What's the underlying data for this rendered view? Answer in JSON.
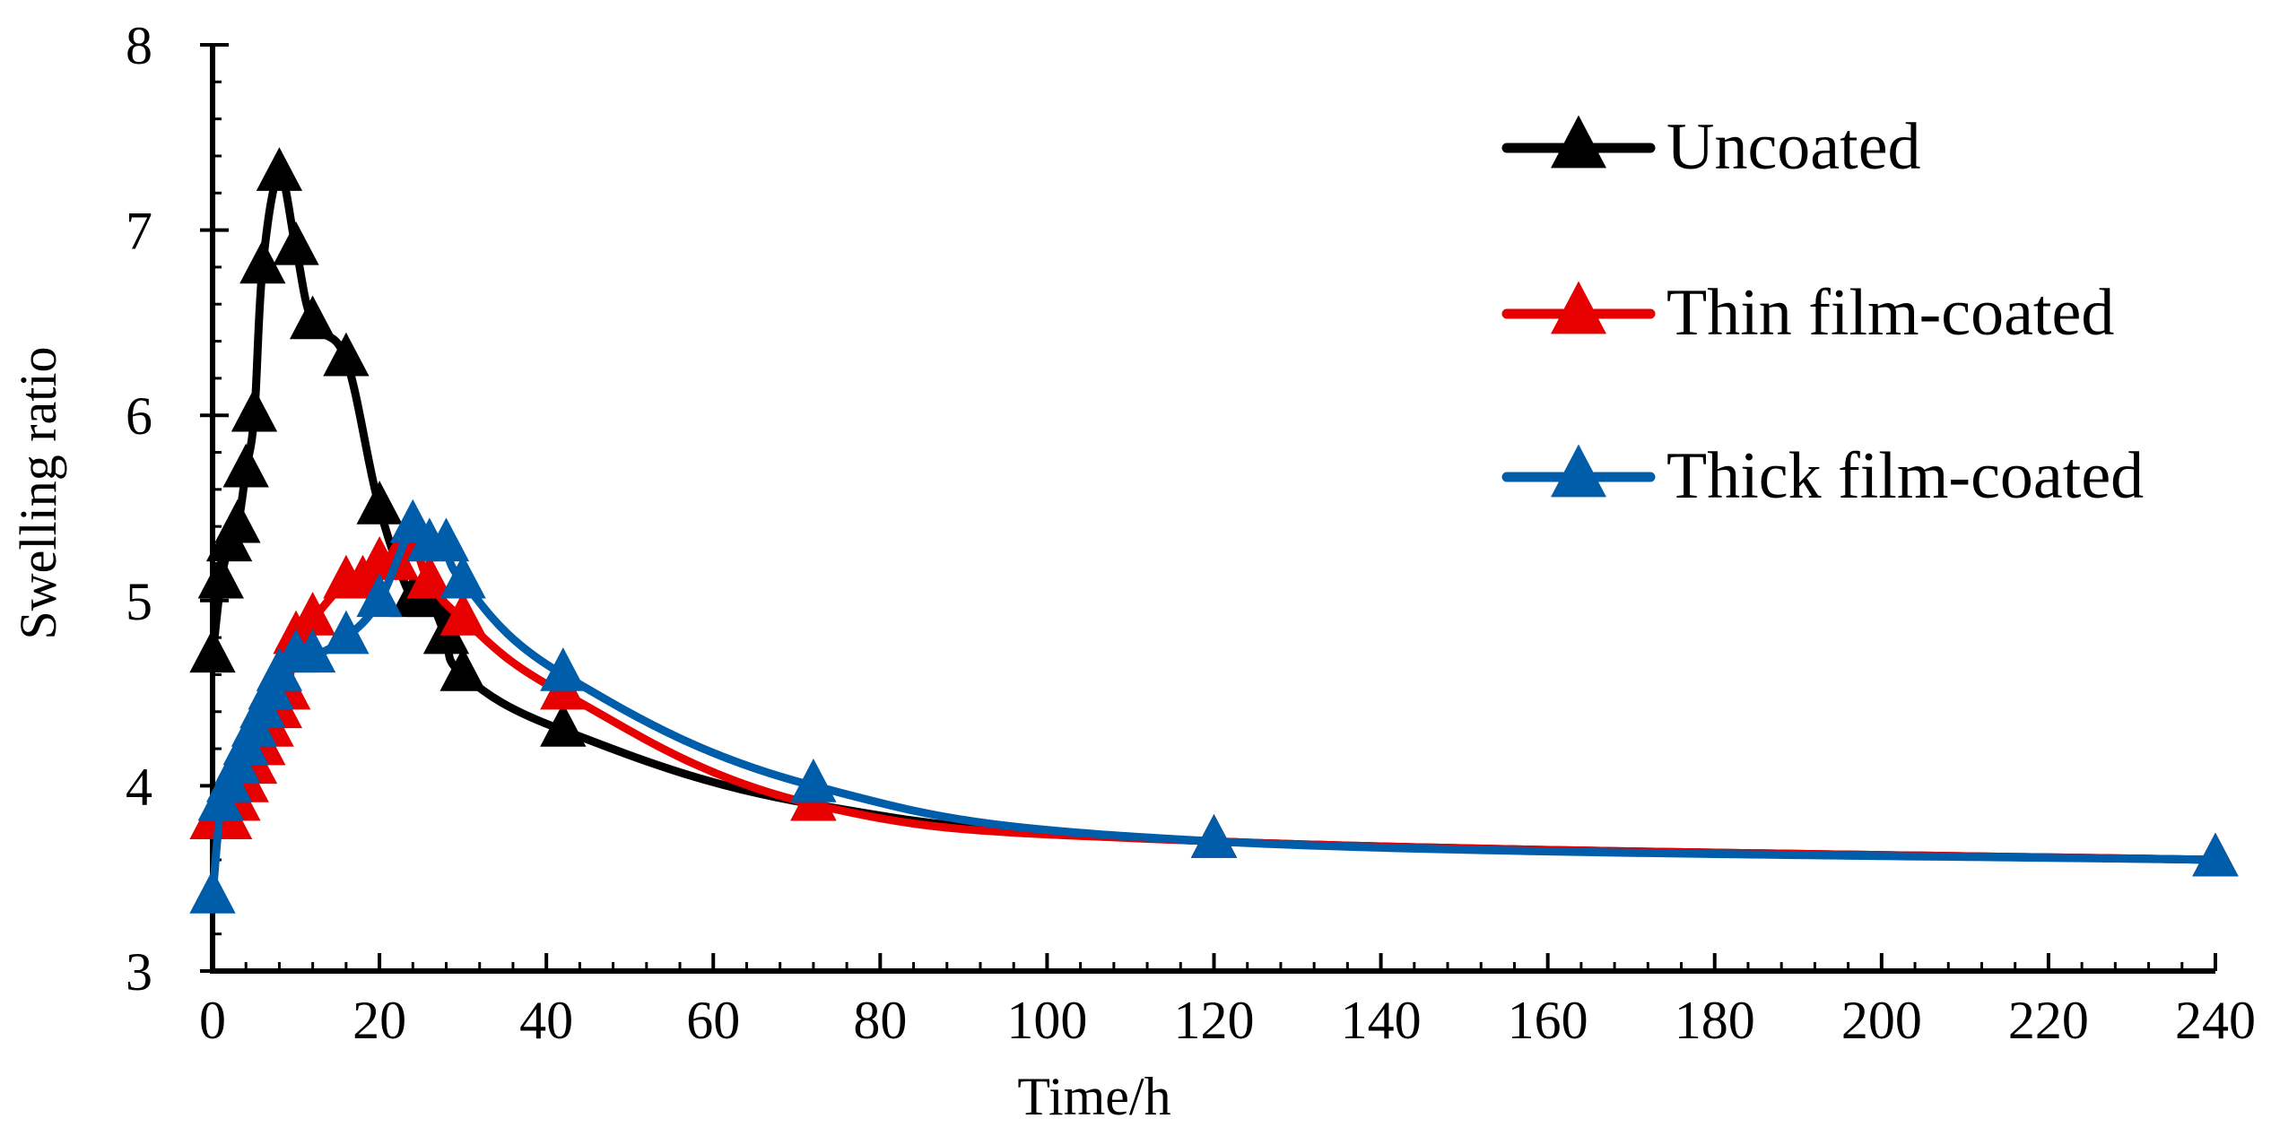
{
  "chart_data": {
    "type": "line",
    "title": "",
    "xlabel": "Time/h",
    "ylabel": "Swelling ratio",
    "xlim": [
      0,
      240
    ],
    "ylim": [
      3,
      8
    ],
    "x_ticks": [
      0,
      20,
      40,
      60,
      80,
      100,
      120,
      140,
      160,
      180,
      200,
      220,
      240
    ],
    "x_tick_labels": [
      "0",
      "20",
      "40",
      "60",
      "80",
      "100",
      "120",
      "140",
      "160",
      "180",
      "200",
      "220",
      "240"
    ],
    "y_ticks": [
      3,
      4,
      5,
      6,
      7,
      8
    ],
    "y_tick_labels": [
      "3",
      "4",
      "5",
      "6",
      "7",
      "8"
    ],
    "x_minor_step": 4,
    "y_minor_step": 0.2,
    "grid": false,
    "legend_position": "top-right",
    "series": [
      {
        "name": "Uncoated",
        "color": "#000000",
        "marker": "triangle",
        "x": [
          0,
          1,
          2,
          3,
          4,
          5,
          6,
          8,
          10,
          12,
          16,
          20,
          24,
          26,
          28,
          30,
          42,
          72,
          120,
          240
        ],
        "y": [
          4.7,
          5.1,
          5.3,
          5.4,
          5.7,
          6.0,
          6.8,
          7.3,
          6.9,
          6.5,
          6.3,
          5.5,
          5.0,
          5.0,
          4.8,
          4.6,
          4.3,
          3.9,
          3.7,
          3.6
        ]
      },
      {
        "name": "Thin film-coated",
        "color": "#E60000",
        "marker": "triangle",
        "x": [
          0,
          1,
          2,
          3,
          4,
          5,
          6,
          7,
          8,
          9,
          10,
          12,
          16,
          18,
          20,
          22,
          24,
          26,
          30,
          42,
          72,
          120,
          240
        ],
        "y": [
          3.8,
          3.8,
          3.8,
          3.9,
          4.0,
          4.1,
          4.2,
          4.3,
          4.4,
          4.5,
          4.8,
          4.9,
          5.1,
          5.1,
          5.2,
          5.2,
          5.3,
          5.1,
          4.9,
          4.5,
          3.9,
          3.7,
          3.6
        ]
      },
      {
        "name": "Thick film-coated",
        "color": "#005DAA",
        "marker": "triangle",
        "x": [
          0,
          1,
          2,
          3,
          4,
          5,
          6,
          7,
          8,
          10,
          12,
          16,
          20,
          24,
          26,
          28,
          30,
          42,
          72,
          120,
          240
        ],
        "y": [
          3.4,
          3.9,
          4.0,
          4.1,
          4.2,
          4.3,
          4.4,
          4.5,
          4.6,
          4.7,
          4.7,
          4.8,
          5.0,
          5.4,
          5.3,
          5.3,
          5.1,
          4.6,
          4.0,
          3.7,
          3.6
        ]
      }
    ]
  }
}
